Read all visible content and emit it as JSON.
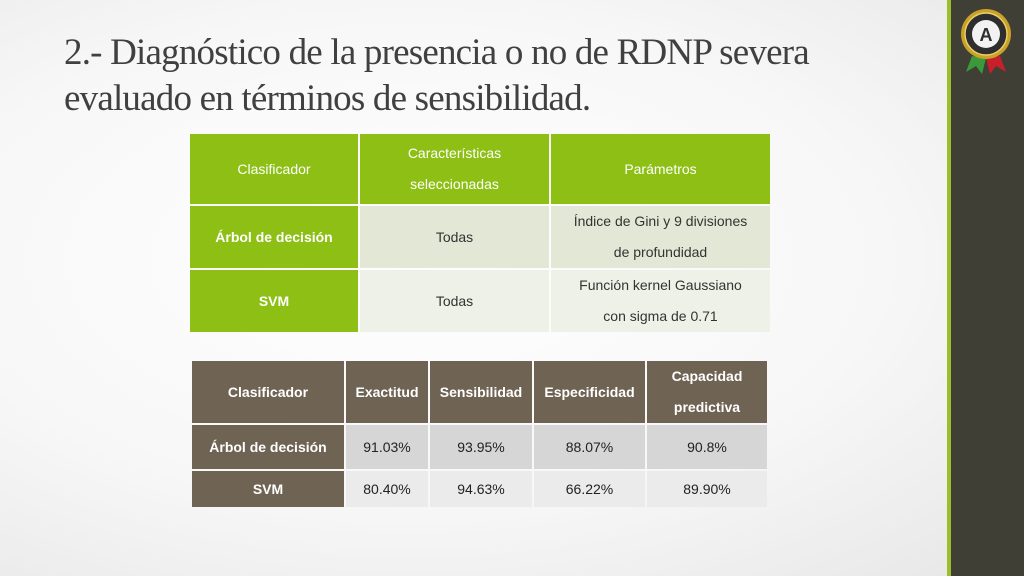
{
  "title": {
    "line1": "2.-  Diagnóstico de la presencia o no de RDNP severa",
    "line2": "evaluado en términos de sensibilidad."
  },
  "logo": {
    "icon": "espe-seal-logo",
    "letter": "A"
  },
  "colors": {
    "accent_green": "#8dbf14",
    "header_brown": "#6f6353",
    "sidebar": "#3f3f35"
  },
  "params_table": {
    "headers": [
      "Clasificador",
      [
        "Características",
        "seleccionadas"
      ],
      "Parámetros"
    ],
    "rows": [
      {
        "classifier": "Árbol de decisión",
        "features": "Todas",
        "params": [
          "Índice de Gini y 9 divisiones",
          "de profundidad"
        ]
      },
      {
        "classifier": "SVM",
        "features": "Todas",
        "params": [
          "Función kernel Gaussiano",
          "con sigma de 0.71"
        ]
      }
    ]
  },
  "results_table": {
    "headers": [
      "Clasificador",
      "Exactitud",
      "Sensibilidad",
      "Especificidad",
      [
        "Capacidad",
        "predictiva"
      ]
    ],
    "rows": [
      {
        "classifier": "Árbol de decisión",
        "accuracy": "91.03%",
        "sensitivity": "93.95%",
        "specificity": "88.07%",
        "predictive": "90.8%"
      },
      {
        "classifier": "SVM",
        "accuracy": "80.40%",
        "sensitivity": "94.63%",
        "specificity": "66.22%",
        "predictive": "89.90%"
      }
    ]
  }
}
